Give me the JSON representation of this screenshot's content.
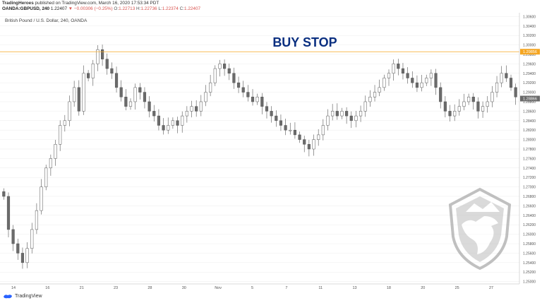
{
  "header": {
    "publisher": "TradingHeroes",
    "published_text": "published on TradingView.com, March 16, 2020 17:53:34 PDT",
    "symbol": "OANDA:GBPUSD, 240",
    "last": "1.22407",
    "change": "▼ −0.00306 (−0.25%)",
    "o_label": "O:",
    "o_value": "1.22713",
    "h_label": "H:",
    "h_value": "1.22736",
    "l_label": "L:",
    "l_value": "1.22374",
    "c_label": "C:",
    "c_value": "1.22407"
  },
  "chart_data": {
    "type": "candlestick",
    "title": "British Pound / U.S. Dollar, 240, OANDA",
    "annotation": "BUY STOP",
    "ylim": [
      1.2495,
      1.3068
    ],
    "y_ticks": [
      "1.30600",
      "1.30400",
      "1.30200",
      "1.30000",
      "1.29800",
      "1.29600",
      "1.29400",
      "1.29200",
      "1.29000",
      "1.28800",
      "1.28600",
      "1.28400",
      "1.28200",
      "1.28000",
      "1.27800",
      "1.27600",
      "1.27400",
      "1.27200",
      "1.27000",
      "1.26800",
      "1.26600",
      "1.26400",
      "1.26200",
      "1.26000",
      "1.25800",
      "1.25600",
      "1.25400",
      "1.25200",
      "1.25000"
    ],
    "x_ticks": [
      "14",
      "16",
      "21",
      "23",
      "28",
      "30",
      "Nov",
      "5",
      "7",
      "11",
      "13",
      "18",
      "20",
      "25",
      "27"
    ],
    "buy_stop_level": 1.29856,
    "buy_stop_label": "1.29856",
    "last_price_label": "1.28866",
    "last_price": 1.28866,
    "price_path": [
      1.268,
      1.261,
      1.258,
      1.256,
      1.254,
      1.257,
      1.261,
      1.265,
      1.27,
      1.274,
      1.276,
      1.279,
      1.283,
      1.284,
      1.288,
      1.291,
      1.286,
      1.294,
      1.293,
      1.296,
      1.299,
      1.297,
      1.295,
      1.294,
      1.291,
      1.289,
      1.287,
      1.288,
      1.291,
      1.29,
      1.288,
      1.286,
      1.285,
      1.283,
      1.282,
      1.283,
      1.284,
      1.283,
      1.285,
      1.286,
      1.287,
      1.286,
      1.288,
      1.29,
      1.292,
      1.295,
      1.296,
      1.295,
      1.294,
      1.292,
      1.291,
      1.29,
      1.289,
      1.288,
      1.289,
      1.287,
      1.286,
      1.285,
      1.284,
      1.283,
      1.282,
      1.282,
      1.281,
      1.28,
      1.279,
      1.278,
      1.28,
      1.281,
      1.283,
      1.285,
      1.286,
      1.285,
      1.286,
      1.285,
      1.284,
      1.285,
      1.286,
      1.288,
      1.289,
      1.29,
      1.291,
      1.293,
      1.294,
      1.296,
      1.295,
      1.294,
      1.293,
      1.292,
      1.291,
      1.292,
      1.293,
      1.294,
      1.291,
      1.288,
      1.286,
      1.285,
      1.286,
      1.287,
      1.288,
      1.289,
      1.288,
      1.286,
      1.287,
      1.288,
      1.29,
      1.292,
      1.294,
      1.293,
      1.291,
      1.289
    ]
  },
  "footer": {
    "brand": "TradingView"
  },
  "colors": {
    "up": "#ffffff",
    "down": "#6b6b6b",
    "wick": "#555555",
    "buy_stop_line": "#f5a623",
    "annotation": "#0a2f80",
    "grid": "#ececec"
  }
}
